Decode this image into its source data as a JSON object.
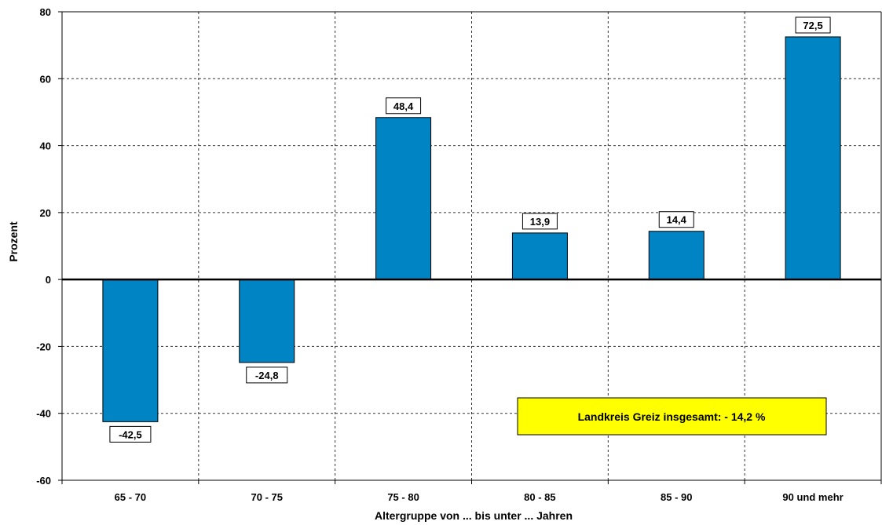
{
  "chart_data": {
    "type": "bar",
    "categories": [
      "65 - 70",
      "70 - 75",
      "75 - 80",
      "80 - 85",
      "85 - 90",
      "90 und mehr"
    ],
    "values": [
      -42.5,
      -24.8,
      48.4,
      13.9,
      14.4,
      72.5
    ],
    "data_labels": [
      "-42,5",
      "-24,8",
      "48,4",
      "13,9",
      "14,4",
      "72,5"
    ],
    "xlabel": "Altergruppe von ... bis unter ... Jahren",
    "ylabel": "Prozent",
    "ylim": [
      -60,
      80
    ],
    "yticks": [
      -60,
      -40,
      -20,
      0,
      20,
      40,
      60,
      80
    ],
    "ytick_labels": [
      "-60",
      "-40",
      "-20",
      "0",
      "20",
      "40",
      "60",
      "80"
    ],
    "grid": true,
    "bar_color": "#0084c4",
    "annotation": {
      "text": "Landkreis Greiz insgesamt: - 14,2 %",
      "background": "#ffff00"
    }
  }
}
